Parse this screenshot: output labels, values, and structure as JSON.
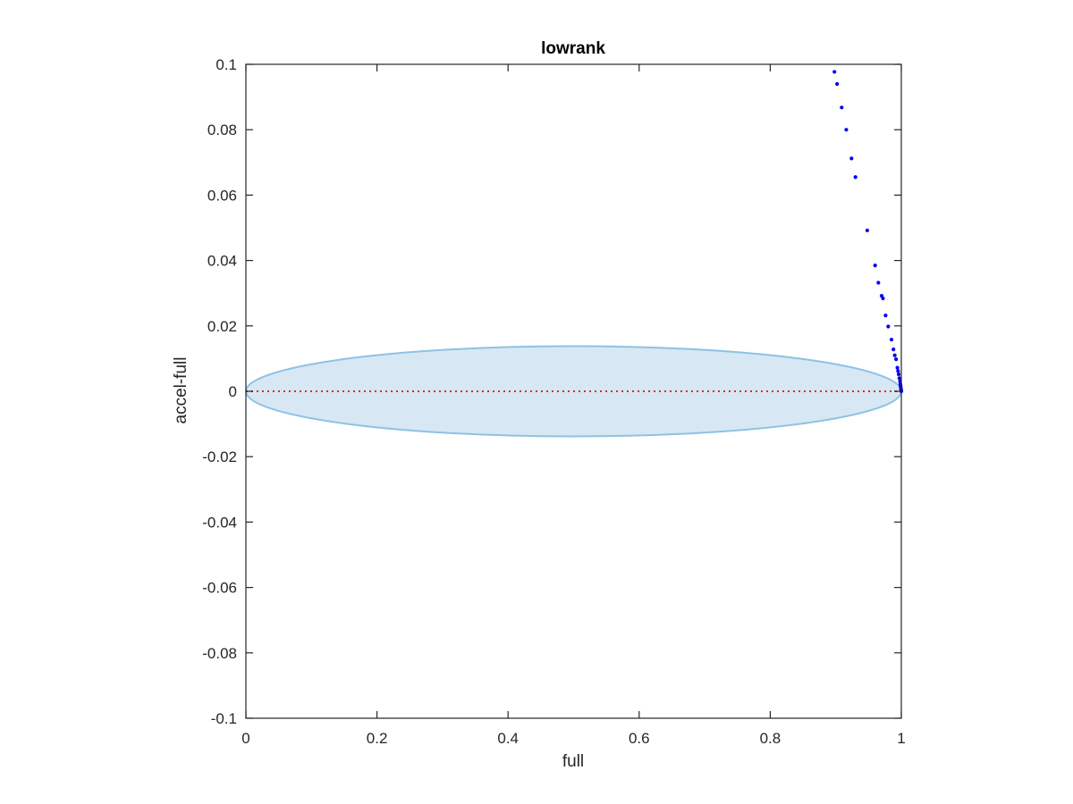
{
  "chart_data": {
    "type": "scatter",
    "title": "lowrank",
    "xlabel": "full",
    "ylabel": "accel-full",
    "xlim": [
      0,
      1
    ],
    "ylim": [
      -0.1,
      0.1
    ],
    "xticks": [
      0,
      0.2,
      0.4,
      0.6,
      0.8,
      1
    ],
    "xtick_labels": [
      "0",
      "0.2",
      "0.4",
      "0.6",
      "0.8",
      "1"
    ],
    "yticks": [
      -0.1,
      -0.08,
      -0.06,
      -0.04,
      -0.02,
      0,
      0.02,
      0.04,
      0.06,
      0.08,
      0.1
    ],
    "ytick_labels": [
      "-0.1",
      "-0.08",
      "-0.06",
      "-0.04",
      "-0.02",
      "0",
      "0.02",
      "0.04",
      "0.06",
      "0.08",
      "0.1"
    ],
    "grid": false,
    "box": true,
    "colors": {
      "points": "#0000ee",
      "region_fill": "#d7e8f4",
      "region_edge": "#8ec2e3",
      "reference_line": "#ee2222",
      "axes": "#262626"
    },
    "region": {
      "shape": "ellipse",
      "center": [
        0.5,
        0
      ],
      "x_semi_axis": 0.5,
      "y_semi_axis": 0.0138
    },
    "reference_line": {
      "y": 0,
      "x_range": [
        0,
        1
      ],
      "style": "dotted"
    },
    "series": [
      {
        "marker": "dot",
        "x": [
          0.898,
          0.902,
          0.909,
          0.916,
          0.924,
          0.93,
          0.948,
          0.96,
          0.965,
          0.97,
          0.972,
          0.976,
          0.98,
          0.985,
          0.988,
          0.99,
          0.992,
          0.994,
          0.995,
          0.996,
          0.997,
          0.998,
          0.9985,
          0.999,
          0.9993,
          0.9996,
          0.9998,
          1.0
        ],
        "y": [
          0.0977,
          0.094,
          0.0868,
          0.08,
          0.0712,
          0.0655,
          0.0492,
          0.0385,
          0.0332,
          0.0292,
          0.0284,
          0.0232,
          0.0198,
          0.0158,
          0.0128,
          0.011,
          0.0098,
          0.0072,
          0.0062,
          0.0052,
          0.004,
          0.003,
          0.0022,
          0.0016,
          0.001,
          0.0006,
          0.0002,
          0.0
        ]
      }
    ]
  }
}
